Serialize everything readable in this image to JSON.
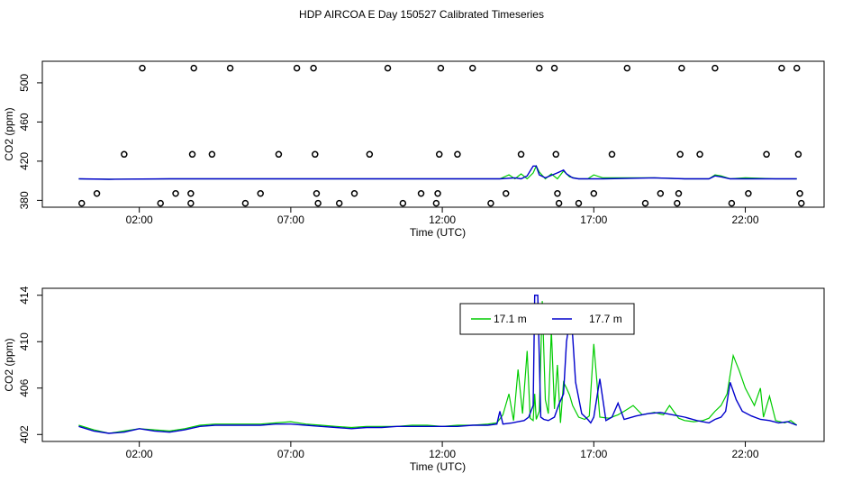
{
  "title": "HDP AIRCOA E  Day 150527  Calibrated Timeseries",
  "colors": {
    "green": "#00cc00",
    "blue": "#0000cc",
    "axis": "#000000"
  },
  "chart_data": [
    {
      "type": "scatter",
      "xlabel": "Time (UTC)",
      "ylabel": "CO2 (ppm)",
      "xlim": [
        -1.2,
        24.6
      ],
      "ylim": [
        373,
        522
      ],
      "xticks": [
        {
          "v": 2,
          "label": "02:00"
        },
        {
          "v": 7,
          "label": "07:00"
        },
        {
          "v": 12,
          "label": "12:00"
        },
        {
          "v": 17,
          "label": "17:00"
        },
        {
          "v": 22,
          "label": "22:00"
        }
      ],
      "yticks": [
        {
          "v": 380,
          "label": "380"
        },
        {
          "v": 420,
          "label": "420"
        },
        {
          "v": 460,
          "label": "460"
        },
        {
          "v": 500,
          "label": "500"
        }
      ],
      "calibration_points": [
        [
          0.1,
          377
        ],
        [
          0.6,
          387
        ],
        [
          1.5,
          427
        ],
        [
          2.1,
          515
        ],
        [
          2.7,
          377
        ],
        [
          3.2,
          387
        ],
        [
          3.7,
          377
        ],
        [
          3.7,
          387
        ],
        [
          3.75,
          427
        ],
        [
          3.8,
          515
        ],
        [
          4.4,
          427
        ],
        [
          5.0,
          515
        ],
        [
          5.5,
          377
        ],
        [
          6.0,
          387
        ],
        [
          6.6,
          427
        ],
        [
          7.2,
          515
        ],
        [
          7.75,
          515
        ],
        [
          7.8,
          427
        ],
        [
          7.85,
          387
        ],
        [
          7.9,
          377
        ],
        [
          8.6,
          377
        ],
        [
          9.1,
          387
        ],
        [
          9.6,
          427
        ],
        [
          10.2,
          515
        ],
        [
          10.7,
          377
        ],
        [
          11.3,
          387
        ],
        [
          11.8,
          377
        ],
        [
          11.85,
          387
        ],
        [
          11.9,
          427
        ],
        [
          11.95,
          515
        ],
        [
          12.5,
          427
        ],
        [
          13.0,
          515
        ],
        [
          13.6,
          377
        ],
        [
          14.1,
          387
        ],
        [
          14.6,
          427
        ],
        [
          15.2,
          515
        ],
        [
          15.7,
          515
        ],
        [
          15.75,
          427
        ],
        [
          15.8,
          387
        ],
        [
          15.85,
          377
        ],
        [
          16.5,
          377
        ],
        [
          17.0,
          387
        ],
        [
          17.6,
          427
        ],
        [
          18.1,
          515
        ],
        [
          18.7,
          377
        ],
        [
          19.2,
          387
        ],
        [
          19.75,
          377
        ],
        [
          19.8,
          387
        ],
        [
          19.85,
          427
        ],
        [
          19.9,
          515
        ],
        [
          20.5,
          427
        ],
        [
          21.0,
          515
        ],
        [
          21.55,
          377
        ],
        [
          22.1,
          387
        ],
        [
          22.7,
          427
        ],
        [
          23.2,
          515
        ],
        [
          23.7,
          515
        ],
        [
          23.75,
          427
        ],
        [
          23.8,
          387
        ],
        [
          23.85,
          377
        ]
      ],
      "series": [
        {
          "color": "#00cc00",
          "x": [
            0.0,
            1.0,
            3.0,
            6.0,
            9.0,
            12.0,
            13.9,
            14.2,
            14.4,
            14.6,
            14.8,
            15.0,
            15.1,
            15.2,
            15.4,
            15.6,
            15.8,
            16.0,
            16.2,
            16.5,
            16.8,
            17.0,
            17.3,
            19.0,
            20.0,
            20.8,
            21.0,
            21.2,
            21.5,
            22.0,
            23.0,
            23.7
          ],
          "y": [
            402,
            401.5,
            402,
            402,
            402,
            402,
            402,
            406,
            402,
            407,
            402,
            408,
            415,
            409,
            402,
            407,
            402,
            410,
            404,
            402,
            402,
            406,
            403,
            403,
            402,
            402,
            406,
            405,
            402,
            403,
            402,
            402
          ]
        },
        {
          "color": "#0000cc",
          "x": [
            0.0,
            1.0,
            3.0,
            6.0,
            9.0,
            12.0,
            13.9,
            14.4,
            14.6,
            14.8,
            15.0,
            15.1,
            15.2,
            15.4,
            15.8,
            16.0,
            16.1,
            16.3,
            16.5,
            16.8,
            17.3,
            19.0,
            20.0,
            20.8,
            21.0,
            21.2,
            21.5,
            22.0,
            23.0,
            23.7
          ],
          "y": [
            402,
            401.5,
            402,
            402,
            402,
            402,
            402,
            403,
            402,
            405,
            415,
            415,
            406,
            403,
            408,
            411,
            407,
            403,
            402,
            402,
            402,
            403,
            402,
            402,
            405,
            404,
            402,
            402,
            402,
            402
          ]
        }
      ]
    },
    {
      "type": "line",
      "xlabel": "Time (UTC)",
      "ylabel": "CO2 (ppm)",
      "xlim": [
        -1.2,
        24.6
      ],
      "ylim": [
        401.4,
        414.6
      ],
      "xticks": [
        {
          "v": 2,
          "label": "02:00"
        },
        {
          "v": 7,
          "label": "07:00"
        },
        {
          "v": 12,
          "label": "12:00"
        },
        {
          "v": 17,
          "label": "17:00"
        },
        {
          "v": 22,
          "label": "22:00"
        }
      ],
      "yticks": [
        {
          "v": 402,
          "label": "402"
        },
        {
          "v": 406,
          "label": "406"
        },
        {
          "v": 410,
          "label": "410"
        },
        {
          "v": 414,
          "label": "414"
        }
      ],
      "legend": "top-right",
      "series": [
        {
          "name": "17.1 m",
          "color": "#00cc00",
          "x": [
            0.0,
            0.5,
            1.0,
            1.5,
            2.0,
            2.5,
            3.0,
            3.5,
            4.0,
            4.5,
            5.0,
            5.5,
            6.0,
            6.5,
            7.0,
            7.5,
            8.0,
            8.5,
            9.0,
            9.5,
            10.0,
            10.5,
            11.0,
            11.5,
            12.0,
            12.5,
            13.0,
            13.5,
            13.8,
            14.0,
            14.2,
            14.35,
            14.5,
            14.65,
            14.8,
            14.9,
            15.0,
            15.05,
            15.1,
            15.2,
            15.3,
            15.4,
            15.5,
            15.6,
            15.7,
            15.8,
            15.9,
            16.0,
            16.1,
            16.2,
            16.3,
            16.5,
            16.7,
            16.85,
            17.0,
            17.2,
            17.5,
            17.8,
            18.0,
            18.3,
            18.6,
            19.0,
            19.3,
            19.5,
            19.8,
            20.0,
            20.3,
            20.6,
            20.8,
            21.0,
            21.2,
            21.4,
            21.6,
            21.8,
            22.0,
            22.3,
            22.5,
            22.6,
            22.8,
            23.0,
            23.3,
            23.5,
            23.7
          ],
          "y": [
            402.8,
            402.4,
            402.1,
            402.3,
            402.5,
            402.4,
            402.3,
            402.5,
            402.8,
            402.9,
            402.9,
            402.9,
            402.9,
            403.0,
            403.1,
            402.9,
            402.8,
            402.7,
            402.6,
            402.7,
            402.7,
            402.7,
            402.8,
            402.8,
            402.7,
            402.8,
            402.8,
            402.9,
            403.0,
            403.7,
            405.5,
            403.2,
            407.6,
            403.8,
            409.2,
            403.4,
            403.2,
            405.5,
            403.3,
            404.0,
            413.5,
            405.0,
            403.8,
            411.0,
            404.2,
            408.0,
            403.0,
            406.5,
            406.0,
            405.4,
            404.5,
            403.5,
            403.3,
            403.6,
            409.8,
            403.5,
            403.4,
            403.7,
            404.0,
            404.5,
            403.7,
            403.9,
            403.7,
            404.5,
            403.4,
            403.2,
            403.1,
            403.2,
            403.4,
            404.0,
            404.5,
            405.5,
            408.8,
            407.5,
            406.0,
            404.5,
            406.0,
            403.5,
            405.3,
            403.2,
            403.0,
            403.2,
            402.8
          ]
        },
        {
          "name": "17.7 m",
          "color": "#0000cc",
          "x": [
            0.0,
            0.5,
            1.0,
            1.5,
            2.0,
            2.5,
            3.0,
            3.5,
            4.0,
            4.5,
            5.0,
            5.5,
            6.0,
            6.5,
            7.0,
            7.5,
            8.0,
            8.5,
            9.0,
            9.5,
            10.0,
            10.5,
            11.0,
            11.5,
            12.0,
            12.5,
            13.0,
            13.5,
            13.8,
            13.9,
            14.0,
            14.3,
            14.5,
            14.7,
            14.85,
            15.0,
            15.05,
            15.15,
            15.25,
            15.35,
            15.5,
            15.7,
            15.85,
            16.0,
            16.1,
            16.25,
            16.4,
            16.6,
            16.8,
            16.9,
            17.0,
            17.2,
            17.4,
            17.6,
            17.8,
            18.0,
            18.4,
            18.8,
            19.2,
            19.6,
            20.0,
            20.4,
            20.8,
            21.0,
            21.2,
            21.35,
            21.5,
            21.7,
            21.9,
            22.2,
            22.5,
            22.8,
            23.1,
            23.4,
            23.7
          ],
          "y": [
            402.7,
            402.3,
            402.1,
            402.2,
            402.5,
            402.3,
            402.2,
            402.4,
            402.7,
            402.8,
            402.8,
            402.8,
            402.8,
            402.9,
            402.9,
            402.8,
            402.7,
            402.6,
            402.5,
            402.6,
            402.6,
            402.7,
            402.7,
            402.7,
            402.7,
            402.7,
            402.8,
            402.8,
            402.9,
            404.0,
            402.9,
            403.0,
            403.1,
            403.2,
            403.5,
            404.5,
            414.0,
            414.0,
            403.5,
            403.3,
            403.2,
            403.5,
            404.6,
            405.5,
            410.0,
            412.6,
            406.5,
            403.8,
            403.3,
            403.0,
            403.5,
            406.8,
            403.2,
            403.5,
            404.7,
            403.3,
            403.6,
            403.8,
            403.9,
            403.7,
            403.5,
            403.2,
            403.0,
            403.3,
            403.5,
            404.0,
            406.5,
            405.0,
            404.0,
            403.6,
            403.3,
            403.2,
            403.0,
            403.1,
            402.8
          ]
        }
      ]
    }
  ]
}
